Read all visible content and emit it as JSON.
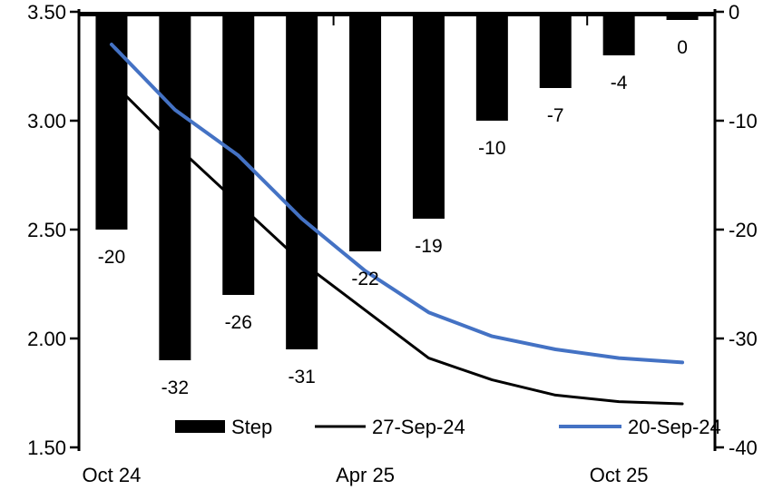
{
  "chart_data": {
    "type": "bar",
    "subtype": "bar+line combo, bars hang from zero line at top (right axis), two line series on left axis",
    "title": "",
    "n_categories": 10,
    "x_axis": {
      "tick_labels": [
        "Oct 24",
        "Apr 25",
        "Oct 25"
      ],
      "label_category_indices": [
        0,
        4,
        8
      ],
      "boundary_tick_indices": [
        4,
        8
      ]
    },
    "left_axis": {
      "min": 1.5,
      "max": 3.5,
      "tick_labels": [
        "3.50",
        "3.00",
        "2.50",
        "2.00",
        "1.50"
      ],
      "tick_values": [
        3.5,
        3.0,
        2.5,
        2.0,
        1.5
      ]
    },
    "right_axis": {
      "min": -40,
      "max": 0,
      "tick_labels": [
        "0",
        "-10",
        "-20",
        "-30",
        "-40"
      ],
      "tick_values": [
        0,
        -10,
        -20,
        -30,
        -40
      ]
    },
    "bar_series": {
      "name": "Step",
      "axis": "right",
      "color": "#000000",
      "values": [
        -20,
        -32,
        -26,
        -31,
        -22,
        -19,
        -10,
        -7,
        -4,
        0
      ],
      "data_labels": [
        "-20",
        "-32",
        "-26",
        "-31",
        "-22",
        "-19",
        "-10",
        "-7",
        "-4",
        "0"
      ]
    },
    "line_series": [
      {
        "name": "27-Sep-24",
        "axis": "left",
        "color": "#000000",
        "stroke_width": 3,
        "values": [
          3.18,
          2.89,
          2.62,
          2.35,
          2.13,
          1.91,
          1.81,
          1.74,
          1.71,
          1.7
        ]
      },
      {
        "name": "20-Sep-24",
        "axis": "left",
        "color": "#4472C4",
        "stroke_width": 4,
        "values": [
          3.35,
          3.05,
          2.84,
          2.55,
          2.31,
          2.12,
          2.01,
          1.95,
          1.91,
          1.89
        ]
      }
    ],
    "legend": [
      {
        "label": "Step",
        "swatch": "bar",
        "color": "#000000"
      },
      {
        "label": "27-Sep-24",
        "swatch": "line",
        "color": "#000000"
      },
      {
        "label": "20-Sep-24",
        "swatch": "line",
        "color": "#4472C4"
      }
    ],
    "grid": false,
    "legend_position": "bottom",
    "background": "#ffffff"
  }
}
